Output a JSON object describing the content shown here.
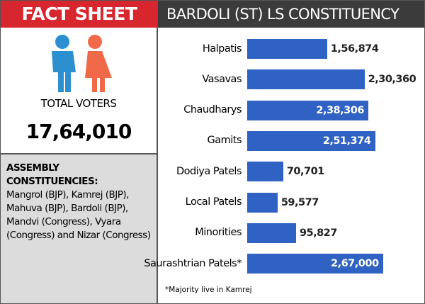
{
  "header": {
    "left": "FACT SHEET"
  },
  "voters": {
    "label": "TOTAL VOTERS",
    "value": "17,64,010"
  },
  "assembly": {
    "heading": "ASSEMBLY CONSTITUENCIES:",
    "text": "Mangrol (BJP), Kamrej (BJP), Mahuva (BJP), Bardoli (BJP), Mandvi (Congress), Vyara (Congress) and Nizar (Congress)"
  },
  "chart_data": {
    "type": "bar",
    "orientation": "horizontal",
    "title": "BARDOLI (ST) LS CONSTITUENCY",
    "categories": [
      "Halpatis",
      "Vasavas",
      "Chaudharys",
      "Gamits",
      "Dodiya Patels",
      "Local Patels",
      "Minorities",
      "Saurashtrian Patels*"
    ],
    "values": [
      156874,
      230360,
      238306,
      251374,
      70701,
      59577,
      95827,
      267000
    ],
    "value_labels": [
      "1,56,874",
      "2,30,360",
      "2,38,306",
      "2,51,374",
      "70,701",
      "59,577",
      "95,827",
      "2,67,000"
    ],
    "color": "#2f62c2",
    "note": "*Majority live in Kamrej"
  }
}
